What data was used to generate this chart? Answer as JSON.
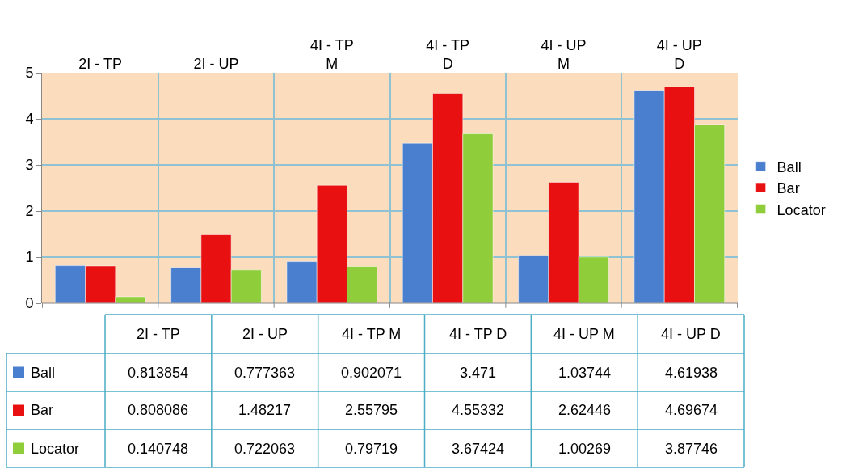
{
  "chart_data": {
    "type": "bar",
    "categories": [
      "2I - TP",
      "2I - UP",
      "4I - TP M",
      "4I - TP D",
      "4I - UP M",
      "4I - UP D"
    ],
    "series": [
      {
        "name": "Ball",
        "color": "#4a7fd0",
        "values": [
          0.813854,
          0.777363,
          0.902071,
          3.471,
          1.03744,
          4.61938
        ]
      },
      {
        "name": "Bar",
        "color": "#e81010",
        "values": [
          0.808086,
          1.48217,
          2.55795,
          4.55332,
          2.62446,
          4.69674
        ]
      },
      {
        "name": "Locator",
        "color": "#8fce3a",
        "values": [
          0.140748,
          0.722063,
          0.79719,
          3.67424,
          1.00269,
          3.87746
        ]
      }
    ],
    "ylim": [
      0,
      5
    ],
    "yticks": [
      0,
      1,
      2,
      3,
      4,
      5
    ],
    "grid": true,
    "legend": "right",
    "data_labels": true
  }
}
